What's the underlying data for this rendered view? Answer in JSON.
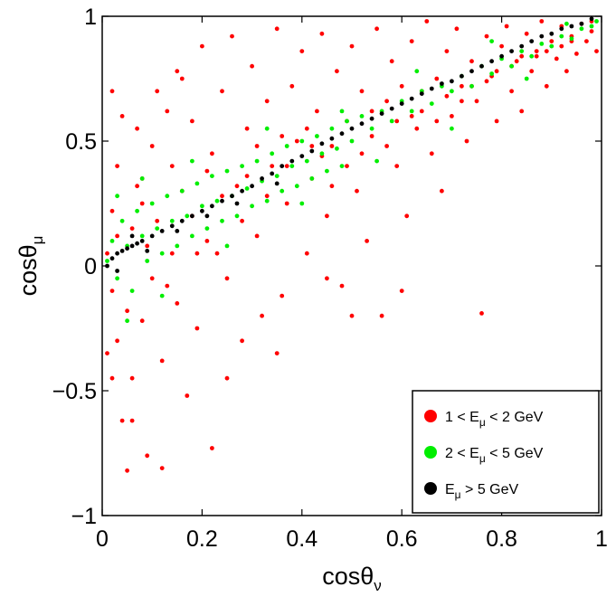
{
  "chart_data": {
    "type": "scatter",
    "title": "",
    "xlabel": {
      "base": "cosθ",
      "sub": "ν"
    },
    "ylabel": {
      "base": "cosθ",
      "sub": "μ"
    },
    "xlim": [
      0,
      1
    ],
    "ylim": [
      -1,
      1
    ],
    "xticks": [
      0,
      0.2,
      0.4,
      0.6,
      0.8,
      1
    ],
    "xtick_labels": [
      "0",
      "0.2",
      "0.4",
      "0.6",
      "0.8",
      "1"
    ],
    "yticks": [
      -1,
      -0.5,
      0,
      0.5,
      1
    ],
    "ytick_labels": [
      "−1",
      "−0.5",
      "0",
      "0.5",
      "1"
    ],
    "grid": false,
    "legend_position": "bottom-right",
    "series": [
      {
        "legend": {
          "pre": "1 < E",
          "sub": "μ",
          "post": " < 2 GeV"
        },
        "color": "#ff0000",
        "points": [
          [
            0.01,
            0.05
          ],
          [
            0.02,
            -0.1
          ],
          [
            0.02,
            0.22
          ],
          [
            0.03,
            -0.3
          ],
          [
            0.03,
            0.4
          ],
          [
            0.04,
            -0.62
          ],
          [
            0.05,
            -0.82
          ],
          [
            0.06,
            0.15
          ],
          [
            0.06,
            -0.45
          ],
          [
            0.07,
            0.55
          ],
          [
            0.08,
            -0.22
          ],
          [
            0.08,
            0.35
          ],
          [
            0.09,
            -0.76
          ],
          [
            0.1,
            0.48
          ],
          [
            0.1,
            -0.05
          ],
          [
            0.11,
            0.7
          ],
          [
            0.12,
            -0.38
          ],
          [
            0.12,
            -0.81
          ],
          [
            0.13,
            0.62
          ],
          [
            0.14,
            0.05
          ],
          [
            0.15,
            -0.15
          ],
          [
            0.15,
            0.78
          ],
          [
            0.16,
            0.3
          ],
          [
            0.17,
            -0.52
          ],
          [
            0.18,
            0.58
          ],
          [
            0.19,
            -0.25
          ],
          [
            0.2,
            0.88
          ],
          [
            0.21,
            0.1
          ],
          [
            0.22,
            -0.73
          ],
          [
            0.22,
            0.45
          ],
          [
            0.24,
            0.7
          ],
          [
            0.25,
            -0.05
          ],
          [
            0.26,
            0.92
          ],
          [
            0.27,
            0.32
          ],
          [
            0.28,
            -0.3
          ],
          [
            0.29,
            0.55
          ],
          [
            0.3,
            0.8
          ],
          [
            0.31,
            0.12
          ],
          [
            0.32,
            -0.2
          ],
          [
            0.33,
            0.66
          ],
          [
            0.34,
            0.4
          ],
          [
            0.35,
            0.95
          ],
          [
            0.36,
            -0.12
          ],
          [
            0.37,
            0.25
          ],
          [
            0.38,
            0.72
          ],
          [
            0.39,
            0.5
          ],
          [
            0.4,
            0.86
          ],
          [
            0.41,
            0.05
          ],
          [
            0.42,
            0.35
          ],
          [
            0.43,
            0.62
          ],
          [
            0.44,
            0.93
          ],
          [
            0.45,
            0.2
          ],
          [
            0.46,
            0.48
          ],
          [
            0.47,
            0.78
          ],
          [
            0.48,
            -0.08
          ],
          [
            0.49,
            0.58
          ],
          [
            0.5,
            0.88
          ],
          [
            0.51,
            0.3
          ],
          [
            0.52,
            0.7
          ],
          [
            0.53,
            0.1
          ],
          [
            0.54,
            0.52
          ],
          [
            0.55,
            0.95
          ],
          [
            0.56,
            -0.2
          ],
          [
            0.57,
            0.66
          ],
          [
            0.58,
            0.82
          ],
          [
            0.59,
            0.4
          ],
          [
            0.6,
            0.72
          ],
          [
            0.61,
            0.2
          ],
          [
            0.62,
            0.9
          ],
          [
            0.63,
            0.55
          ],
          [
            0.64,
            0.62
          ],
          [
            0.65,
            0.98
          ],
          [
            0.66,
            0.45
          ],
          [
            0.67,
            0.75
          ],
          [
            0.68,
            0.3
          ],
          [
            0.69,
            0.86
          ],
          [
            0.7,
            0.6
          ],
          [
            0.71,
            0.95
          ],
          [
            0.72,
            0.72
          ],
          [
            0.73,
            0.5
          ],
          [
            0.74,
            0.82
          ],
          [
            0.75,
            0.66
          ],
          [
            0.76,
            -0.19
          ],
          [
            0.77,
            0.92
          ],
          [
            0.78,
            0.76
          ],
          [
            0.79,
            0.58
          ],
          [
            0.8,
            0.88
          ],
          [
            0.81,
            0.96
          ],
          [
            0.82,
            0.7
          ],
          [
            0.83,
            0.82
          ],
          [
            0.84,
            0.62
          ],
          [
            0.85,
            0.93
          ],
          [
            0.86,
            0.78
          ],
          [
            0.87,
            0.86
          ],
          [
            0.88,
            0.98
          ],
          [
            0.89,
            0.72
          ],
          [
            0.9,
            0.9
          ],
          [
            0.91,
            0.83
          ],
          [
            0.92,
            0.96
          ],
          [
            0.93,
            0.78
          ],
          [
            0.94,
            0.92
          ],
          [
            0.95,
            0.85
          ],
          [
            0.96,
            0.97
          ],
          [
            0.97,
            0.9
          ],
          [
            0.98,
            0.94
          ],
          [
            0.99,
            0.86
          ],
          [
            0.06,
            -0.62
          ],
          [
            0.04,
            0.6
          ],
          [
            0.16,
            0.75
          ],
          [
            0.02,
            -0.45
          ],
          [
            0.08,
            0.25
          ],
          [
            0.11,
            0.18
          ],
          [
            0.13,
            -0.08
          ],
          [
            0.18,
            0.2
          ],
          [
            0.21,
            0.38
          ],
          [
            0.23,
            0.05
          ],
          [
            0.28,
            0.18
          ],
          [
            0.33,
            0.28
          ],
          [
            0.36,
            0.52
          ],
          [
            0.42,
            0.48
          ],
          [
            0.46,
            0.32
          ],
          [
            0.52,
            0.45
          ],
          [
            0.57,
            0.48
          ],
          [
            0.62,
            0.6
          ],
          [
            0.67,
            0.58
          ],
          [
            0.72,
            0.66
          ],
          [
            0.77,
            0.74
          ],
          [
            0.82,
            0.8
          ],
          [
            0.87,
            0.84
          ],
          [
            0.92,
            0.88
          ],
          [
            0.03,
            0.12
          ],
          [
            0.05,
            -0.18
          ],
          [
            0.07,
            0.32
          ],
          [
            0.09,
            0.08
          ],
          [
            0.01,
            -0.35
          ],
          [
            0.02,
            0.7
          ],
          [
            0.14,
            0.4
          ],
          [
            0.19,
            0.05
          ],
          [
            0.24,
            0.28
          ],
          [
            0.29,
            0.36
          ],
          [
            0.31,
            0.48
          ],
          [
            0.37,
            0.4
          ],
          [
            0.41,
            0.55
          ],
          [
            0.44,
            0.44
          ],
          [
            0.49,
            0.4
          ],
          [
            0.54,
            0.62
          ],
          [
            0.59,
            0.58
          ],
          [
            0.64,
            0.7
          ],
          [
            0.69,
            0.68
          ],
          [
            0.74,
            0.72
          ],
          [
            0.79,
            0.78
          ],
          [
            0.84,
            0.84
          ],
          [
            0.89,
            0.86
          ],
          [
            0.94,
            0.9
          ],
          [
            0.98,
            0.98
          ],
          [
            0.5,
            -0.2
          ],
          [
            0.45,
            -0.05
          ],
          [
            0.6,
            -0.1
          ],
          [
            0.35,
            -0.35
          ],
          [
            0.25,
            -0.45
          ]
        ]
      },
      {
        "legend": {
          "pre": "2 < E",
          "sub": "μ",
          "post": " < 5 GeV"
        },
        "color": "#00ee00",
        "points": [
          [
            0.01,
            0.02
          ],
          [
            0.02,
            0.1
          ],
          [
            0.03,
            -0.05
          ],
          [
            0.04,
            0.18
          ],
          [
            0.05,
            0.08
          ],
          [
            0.06,
            -0.1
          ],
          [
            0.07,
            0.22
          ],
          [
            0.08,
            0.12
          ],
          [
            0.09,
            0.02
          ],
          [
            0.1,
            0.25
          ],
          [
            0.11,
            0.15
          ],
          [
            0.12,
            0.05
          ],
          [
            0.13,
            0.28
          ],
          [
            0.14,
            0.18
          ],
          [
            0.15,
            0.08
          ],
          [
            0.16,
            0.3
          ],
          [
            0.17,
            0.2
          ],
          [
            0.18,
            0.12
          ],
          [
            0.19,
            0.33
          ],
          [
            0.2,
            0.24
          ],
          [
            0.21,
            0.15
          ],
          [
            0.22,
            0.36
          ],
          [
            0.23,
            0.26
          ],
          [
            0.24,
            0.18
          ],
          [
            0.25,
            0.38
          ],
          [
            0.26,
            0.28
          ],
          [
            0.27,
            0.2
          ],
          [
            0.28,
            0.4
          ],
          [
            0.29,
            0.31
          ],
          [
            0.3,
            0.24
          ],
          [
            0.31,
            0.42
          ],
          [
            0.32,
            0.34
          ],
          [
            0.33,
            0.26
          ],
          [
            0.34,
            0.45
          ],
          [
            0.35,
            0.36
          ],
          [
            0.36,
            0.3
          ],
          [
            0.37,
            0.48
          ],
          [
            0.38,
            0.4
          ],
          [
            0.39,
            0.32
          ],
          [
            0.4,
            0.5
          ],
          [
            0.41,
            0.42
          ],
          [
            0.42,
            0.35
          ],
          [
            0.43,
            0.52
          ],
          [
            0.44,
            0.45
          ],
          [
            0.45,
            0.38
          ],
          [
            0.46,
            0.55
          ],
          [
            0.47,
            0.47
          ],
          [
            0.48,
            0.4
          ],
          [
            0.49,
            0.58
          ],
          [
            0.5,
            0.5
          ],
          [
            0.52,
            0.6
          ],
          [
            0.54,
            0.55
          ],
          [
            0.56,
            0.62
          ],
          [
            0.58,
            0.58
          ],
          [
            0.6,
            0.66
          ],
          [
            0.62,
            0.62
          ],
          [
            0.64,
            0.7
          ],
          [
            0.66,
            0.65
          ],
          [
            0.68,
            0.72
          ],
          [
            0.7,
            0.7
          ],
          [
            0.72,
            0.76
          ],
          [
            0.74,
            0.72
          ],
          [
            0.76,
            0.8
          ],
          [
            0.78,
            0.77
          ],
          [
            0.8,
            0.83
          ],
          [
            0.82,
            0.8
          ],
          [
            0.84,
            0.86
          ],
          [
            0.86,
            0.84
          ],
          [
            0.88,
            0.89
          ],
          [
            0.9,
            0.88
          ],
          [
            0.92,
            0.92
          ],
          [
            0.94,
            0.91
          ],
          [
            0.96,
            0.95
          ],
          [
            0.98,
            0.96
          ],
          [
            0.99,
            0.98
          ],
          [
            0.03,
            0.28
          ],
          [
            0.05,
            -0.22
          ],
          [
            0.08,
            0.35
          ],
          [
            0.12,
            -0.12
          ],
          [
            0.18,
            0.42
          ],
          [
            0.25,
            0.08
          ],
          [
            0.33,
            0.55
          ],
          [
            0.4,
            0.25
          ],
          [
            0.48,
            0.62
          ],
          [
            0.55,
            0.42
          ],
          [
            0.63,
            0.78
          ],
          [
            0.7,
            0.55
          ],
          [
            0.78,
            0.9
          ],
          [
            0.85,
            0.75
          ],
          [
            0.93,
            0.97
          ]
        ]
      },
      {
        "legend": {
          "pre": "E",
          "sub": "μ",
          "post": " > 5 GeV"
        },
        "color": "#000000",
        "points": [
          [
            0.01,
            0.0
          ],
          [
            0.02,
            0.03
          ],
          [
            0.03,
            0.05
          ],
          [
            0.04,
            0.06
          ],
          [
            0.05,
            0.07
          ],
          [
            0.06,
            0.08
          ],
          [
            0.07,
            0.09
          ],
          [
            0.08,
            0.1
          ],
          [
            0.1,
            0.12
          ],
          [
            0.12,
            0.14
          ],
          [
            0.14,
            0.16
          ],
          [
            0.16,
            0.18
          ],
          [
            0.18,
            0.2
          ],
          [
            0.2,
            0.22
          ],
          [
            0.22,
            0.24
          ],
          [
            0.24,
            0.26
          ],
          [
            0.26,
            0.28
          ],
          [
            0.28,
            0.3
          ],
          [
            0.3,
            0.32
          ],
          [
            0.32,
            0.35
          ],
          [
            0.34,
            0.37
          ],
          [
            0.36,
            0.4
          ],
          [
            0.38,
            0.42
          ],
          [
            0.4,
            0.44
          ],
          [
            0.42,
            0.46
          ],
          [
            0.44,
            0.49
          ],
          [
            0.46,
            0.51
          ],
          [
            0.48,
            0.53
          ],
          [
            0.5,
            0.55
          ],
          [
            0.52,
            0.57
          ],
          [
            0.54,
            0.59
          ],
          [
            0.56,
            0.61
          ],
          [
            0.58,
            0.63
          ],
          [
            0.6,
            0.65
          ],
          [
            0.62,
            0.67
          ],
          [
            0.64,
            0.69
          ],
          [
            0.66,
            0.71
          ],
          [
            0.68,
            0.73
          ],
          [
            0.7,
            0.74
          ],
          [
            0.72,
            0.76
          ],
          [
            0.74,
            0.78
          ],
          [
            0.76,
            0.8
          ],
          [
            0.78,
            0.82
          ],
          [
            0.8,
            0.84
          ],
          [
            0.82,
            0.86
          ],
          [
            0.84,
            0.88
          ],
          [
            0.86,
            0.9
          ],
          [
            0.88,
            0.92
          ],
          [
            0.9,
            0.93
          ],
          [
            0.92,
            0.95
          ],
          [
            0.94,
            0.96
          ],
          [
            0.96,
            0.97
          ],
          [
            0.98,
            0.99
          ],
          [
            0.03,
            -0.02
          ],
          [
            0.06,
            0.12
          ],
          [
            0.09,
            0.06
          ],
          [
            0.15,
            0.14
          ],
          [
            0.21,
            0.2
          ],
          [
            0.27,
            0.25
          ],
          [
            0.35,
            0.33
          ]
        ]
      }
    ]
  }
}
